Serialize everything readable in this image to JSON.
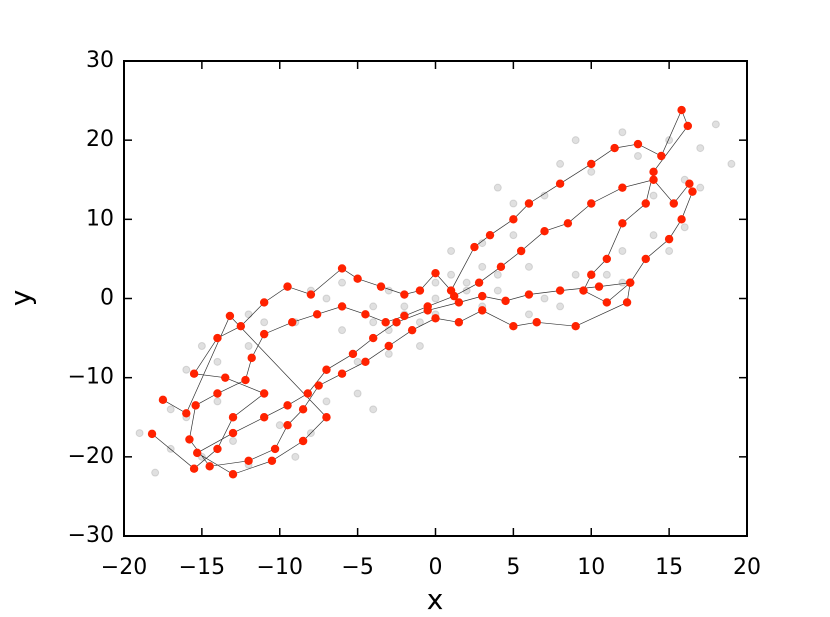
{
  "chart_data": {
    "type": "scatter",
    "xlabel": "x",
    "ylabel": "y",
    "xlim": [
      -20,
      20
    ],
    "ylim": [
      -30,
      30
    ],
    "xticks": [
      {
        "value": -20,
        "label": "−20"
      },
      {
        "value": -15,
        "label": "−15"
      },
      {
        "value": -10,
        "label": "−10"
      },
      {
        "value": -5,
        "label": "−5"
      },
      0,
      5,
      10,
      15,
      20
    ],
    "yticks": [
      {
        "value": -30,
        "label": "−30"
      },
      {
        "value": -20,
        "label": "−20"
      },
      {
        "value": -10,
        "label": "−10"
      },
      0,
      10,
      20,
      30
    ],
    "series": [
      {
        "color": "#555555",
        "opacity": 0.18,
        "line": false,
        "x": [
          -15,
          -16,
          -14,
          -11,
          -7,
          -4,
          -3,
          -5,
          -8,
          -12,
          -13,
          -14,
          -12,
          -9,
          -6,
          -5,
          -7,
          -10,
          -17,
          -17,
          -15,
          -12,
          -8,
          -2,
          -1,
          -4,
          -9,
          -18,
          -19,
          -16,
          15,
          16,
          14,
          11,
          7,
          4,
          3,
          5,
          8,
          12,
          13,
          14,
          12,
          9,
          6,
          5,
          7,
          10,
          17,
          17,
          15,
          12,
          8,
          2,
          1,
          4,
          9,
          18,
          19,
          16,
          -2,
          0,
          2,
          -1,
          1,
          -3,
          3,
          0,
          0,
          -4,
          4,
          -6,
          6,
          -3,
          3
        ],
        "values": [
          -20,
          -15,
          -8,
          -3,
          0,
          -3,
          -7,
          -12,
          -17,
          -21,
          -18,
          -13,
          -6,
          -3,
          -4,
          -8,
          -13,
          -16,
          -19,
          -14,
          -6,
          -2,
          1,
          -2,
          -6,
          -14,
          -20,
          -22,
          -17,
          -9,
          20,
          15,
          8,
          3,
          0,
          3,
          7,
          12,
          17,
          21,
          18,
          13,
          6,
          3,
          4,
          8,
          13,
          16,
          19,
          14,
          6,
          2,
          -1,
          2,
          6,
          14,
          20,
          22,
          17,
          9,
          -1,
          0,
          1,
          -3,
          3,
          -4,
          4,
          -2,
          2,
          -1,
          1,
          2,
          -2,
          1,
          -1
        ]
      },
      {
        "color": "#ff2200",
        "opacity": 1,
        "line": true,
        "x": [
          -18.2,
          -15.5,
          -14,
          -13,
          -11,
          -13.5,
          -15.5,
          -14,
          -12.5,
          -11,
          -9.5,
          -8,
          -6,
          -5,
          -3.5,
          -2,
          -1,
          0,
          1,
          2.5,
          3.5,
          5,
          6,
          8,
          10,
          11.5,
          13,
          14.5,
          15.8,
          16.2,
          14,
          13.5,
          12,
          11,
          10,
          9.5,
          11,
          12.5,
          12.3,
          9,
          6.5,
          5,
          3,
          1.5,
          0,
          -1.5,
          -3,
          -4.5,
          -6,
          -7.5,
          -8.5,
          -9.5,
          -10.3,
          -12,
          -14.5,
          -15.8,
          -15.4,
          -14,
          -12.2,
          -11.8,
          -11,
          -9.2,
          -7.6,
          -6,
          -4.5,
          -3.2,
          -2,
          -0.5,
          1.2,
          2.8,
          4.2,
          5.5,
          7,
          8.5,
          10,
          12,
          14,
          15.3,
          16.3,
          16.5,
          15.8,
          15,
          13.5,
          12.5,
          10.5,
          8,
          6,
          4.5,
          3,
          1.5,
          -0.5,
          -2.5,
          -4,
          -5.3,
          -7,
          -8.2,
          -9.5,
          -11,
          -13,
          -15.3,
          -13,
          -10.5,
          -8.5,
          -7,
          -13.2,
          -16,
          -17.5
        ],
        "values": [
          -17.1,
          -21.5,
          -19,
          -15,
          -12,
          -10,
          -9.5,
          -5,
          -3.5,
          -0.5,
          1.5,
          0.5,
          3.8,
          2.5,
          1.5,
          0.5,
          1,
          3.2,
          1,
          6.5,
          8,
          10,
          12,
          14.5,
          17,
          19,
          19.5,
          18,
          23.8,
          21.8,
          16,
          12,
          9.5,
          5,
          3,
          1,
          -0.5,
          2,
          -0.5,
          -3.5,
          -3,
          -3.5,
          -1.5,
          -3,
          -2.5,
          -4,
          -6,
          -8,
          -9.5,
          -11,
          -14,
          -16,
          -19,
          -20.5,
          -21.2,
          -17.8,
          -13.5,
          -12,
          -10.3,
          -7.5,
          -4.5,
          -3,
          -2,
          -1,
          -2,
          -3,
          -2.2,
          -1,
          0.3,
          2,
          4,
          6,
          8.5,
          9.5,
          12,
          14,
          15,
          12,
          14.5,
          13.5,
          10,
          7.5,
          5,
          2,
          1.5,
          1,
          0.5,
          -0.3,
          0.3,
          -0.5,
          -1.5,
          -3,
          -5,
          -7,
          -9,
          -12,
          -13.5,
          -15,
          -17,
          -19.5,
          -22.2,
          -20.5,
          -18,
          -15,
          -2.2,
          -14.5,
          -12.8
        ]
      }
    ]
  }
}
